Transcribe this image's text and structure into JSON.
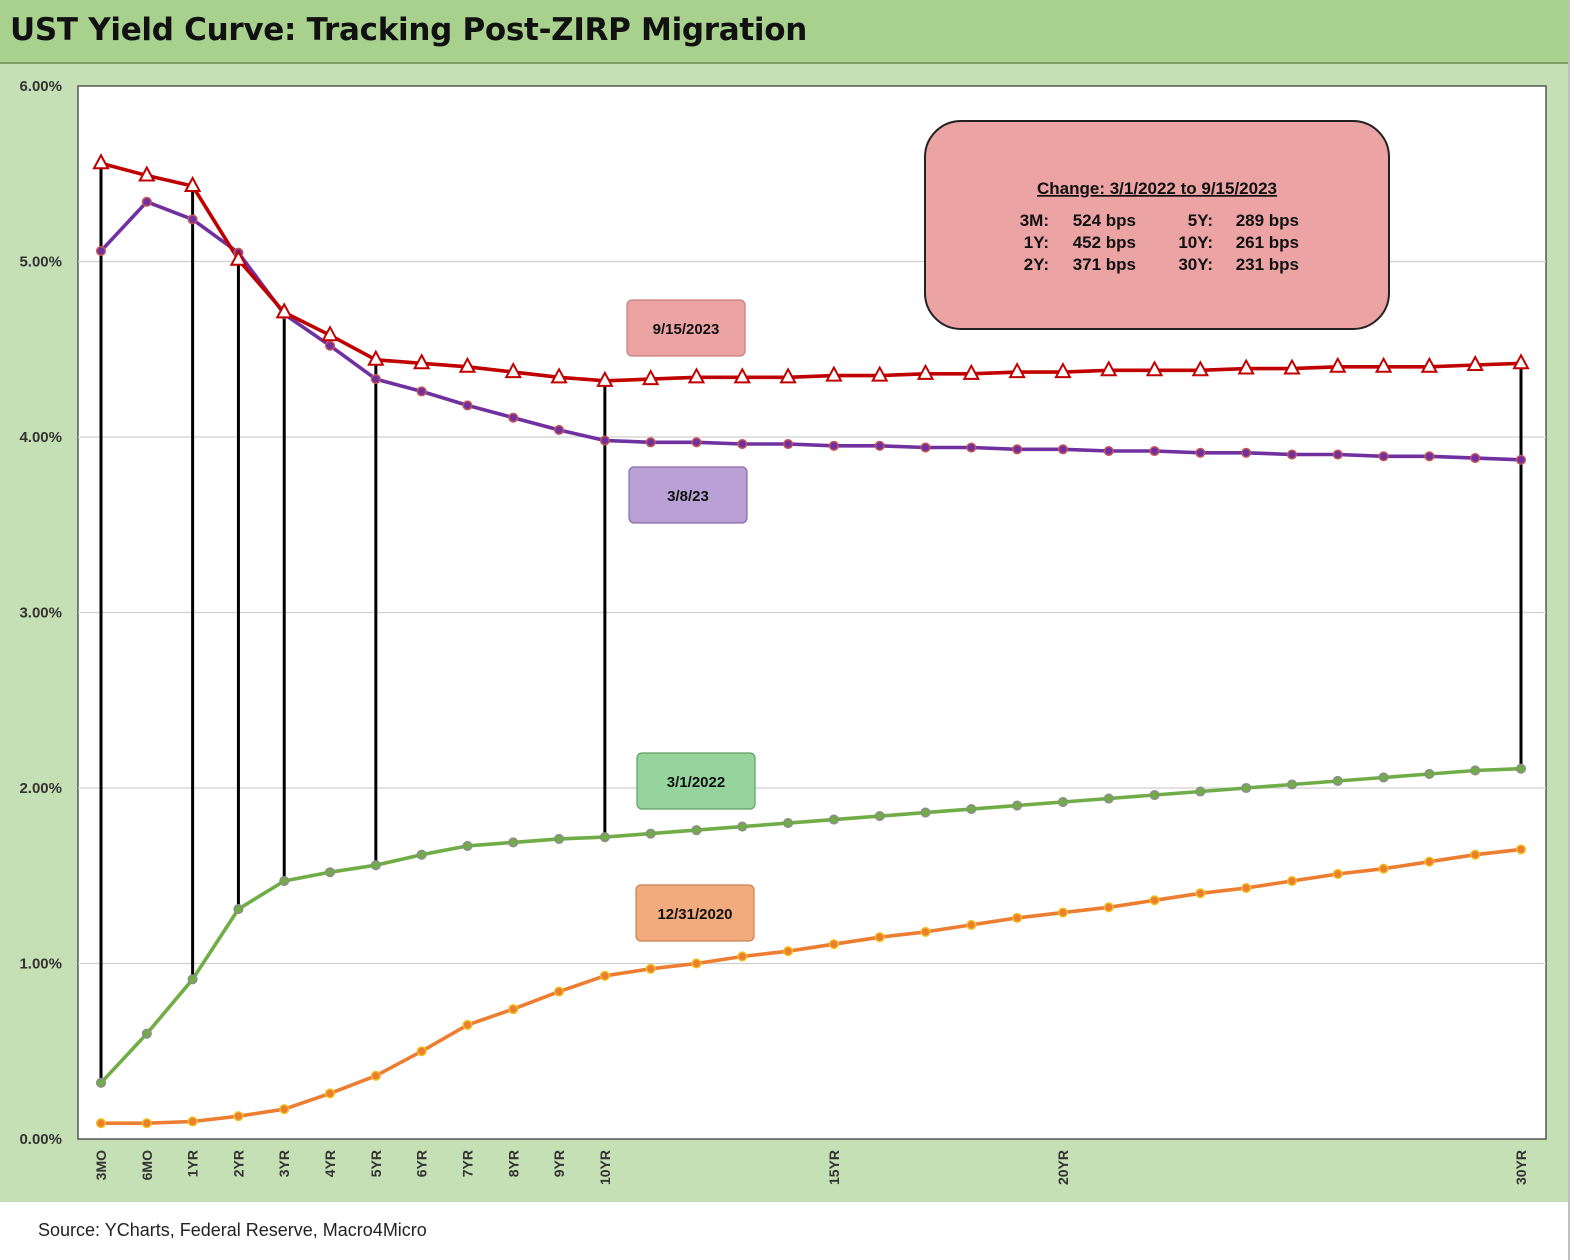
{
  "header": {
    "title": "UST Yield Curve: Tracking Post-ZIRP Migration"
  },
  "footer": {
    "source": "Source: YCharts, Federal Reserve, Macro4Micro"
  },
  "chart_data": {
    "type": "line",
    "title": "UST Yield Curve: Tracking Post-ZIRP Migration",
    "xlabel": "",
    "ylabel": "",
    "ylim": [
      0,
      6
    ],
    "grid": true,
    "y_ticks": [
      "0.00%",
      "1.00%",
      "2.00%",
      "3.00%",
      "4.00%",
      "5.00%",
      "6.00%"
    ],
    "x_tick_labels": [
      "3MO",
      "6MO",
      "1YR",
      "2YR",
      "3YR",
      "4YR",
      "5YR",
      "6YR",
      "7YR",
      "8YR",
      "9YR",
      "10YR",
      "",
      "",
      "",
      "",
      "15YR",
      "",
      "",
      "",
      "",
      "20YR",
      "",
      "",
      "",
      "",
      "",
      "",
      "",
      "",
      "",
      "30YR"
    ],
    "x_positions": [
      0,
      1,
      2,
      3,
      4,
      5,
      6,
      7,
      8,
      9,
      10,
      11,
      12,
      13,
      14,
      15,
      16,
      17,
      18,
      19,
      20,
      21,
      22,
      23,
      24,
      25,
      26,
      27,
      28,
      29,
      30,
      31
    ],
    "series": [
      {
        "name": "9/15/2023",
        "color": "#c00000",
        "marker": "triangle",
        "values": [
          5.56,
          5.49,
          5.43,
          5.01,
          4.71,
          4.58,
          4.44,
          4.42,
          4.4,
          4.37,
          4.34,
          4.32,
          4.33,
          4.34,
          4.34,
          4.34,
          4.35,
          4.35,
          4.36,
          4.36,
          4.37,
          4.37,
          4.38,
          4.38,
          4.38,
          4.39,
          4.39,
          4.4,
          4.4,
          4.4,
          4.41,
          4.42
        ]
      },
      {
        "name": "3/8/23",
        "color": "#7030a0",
        "marker": "circle",
        "values": [
          5.06,
          5.34,
          5.24,
          5.05,
          4.7,
          4.52,
          4.33,
          4.26,
          4.18,
          4.11,
          4.04,
          3.98,
          3.97,
          3.97,
          3.96,
          3.96,
          3.95,
          3.95,
          3.94,
          3.94,
          3.93,
          3.93,
          3.92,
          3.92,
          3.91,
          3.91,
          3.9,
          3.9,
          3.89,
          3.89,
          3.88,
          3.87
        ]
      },
      {
        "name": "3/1/2022",
        "color": "#70ad47",
        "marker": "circle",
        "values": [
          0.32,
          0.6,
          0.91,
          1.31,
          1.47,
          1.52,
          1.56,
          1.62,
          1.67,
          1.69,
          1.71,
          1.72,
          1.74,
          1.76,
          1.78,
          1.8,
          1.82,
          1.84,
          1.86,
          1.88,
          1.9,
          1.92,
          1.94,
          1.96,
          1.98,
          2.0,
          2.02,
          2.04,
          2.06,
          2.08,
          2.1,
          2.11
        ]
      },
      {
        "name": "12/31/2020",
        "color": "#ed7d31",
        "marker": "circle",
        "values": [
          0.09,
          0.09,
          0.1,
          0.13,
          0.17,
          0.26,
          0.36,
          0.5,
          0.65,
          0.74,
          0.84,
          0.93,
          0.97,
          1.0,
          1.04,
          1.07,
          1.11,
          1.15,
          1.18,
          1.22,
          1.26,
          1.29,
          1.32,
          1.36,
          1.4,
          1.43,
          1.47,
          1.51,
          1.54,
          1.58,
          1.62,
          1.65
        ]
      }
    ],
    "connectors": {
      "color": "#000000",
      "from_series": "3/1/2022",
      "to_series": "9/15/2023",
      "at": [
        0,
        2,
        3,
        4,
        6,
        11,
        31
      ]
    },
    "series_labels": [
      {
        "text": "9/15/2023",
        "fill": "#eba3a3",
        "border": "#c97f7f"
      },
      {
        "text": "3/8/23",
        "fill": "#b9a0d5",
        "border": "#8a6bab"
      },
      {
        "text": "3/1/2022",
        "fill": "#96d49e",
        "border": "#5f9f68"
      },
      {
        "text": "12/31/2020",
        "fill": "#f2ab7d",
        "border": "#c98050"
      }
    ],
    "annotation_box": {
      "title": "Change: 3/1/2022 to 9/15/2023",
      "fill": "#eba3a3",
      "border": "#222222",
      "rows": [
        [
          {
            "tenor": "3M:",
            "change": "524 bps"
          },
          {
            "tenor": "5Y:",
            "change": "289 bps"
          }
        ],
        [
          {
            "tenor": "1Y:",
            "change": "452 bps"
          },
          {
            "tenor": "10Y:",
            "change": "261 bps"
          }
        ],
        [
          {
            "tenor": "2Y:",
            "change": "371 bps"
          },
          {
            "tenor": "30Y:",
            "change": "231 bps"
          }
        ]
      ]
    }
  }
}
